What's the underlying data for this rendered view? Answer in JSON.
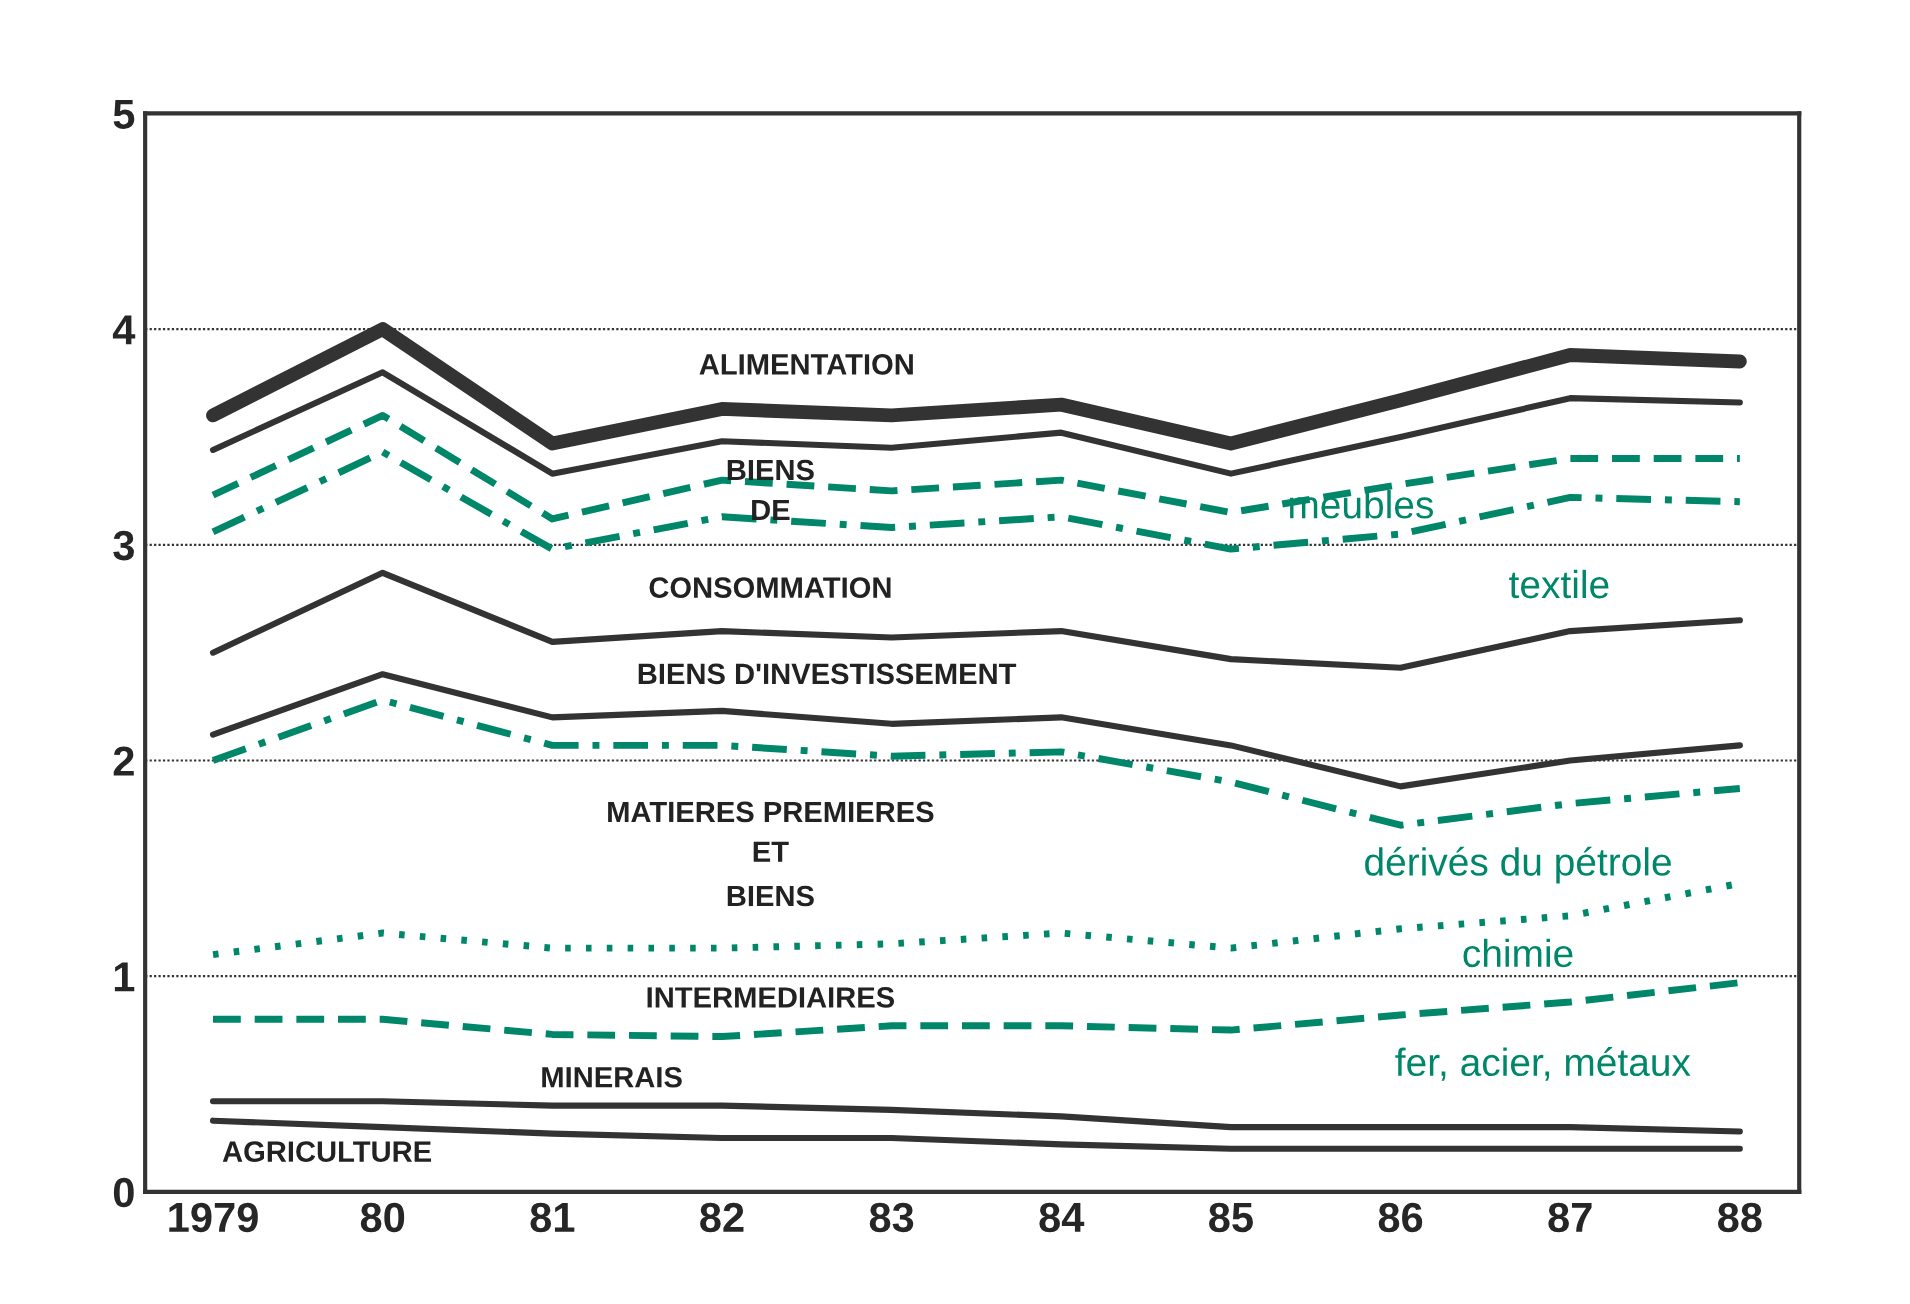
{
  "chart_data": {
    "type": "line",
    "categories": [
      "1979",
      "80",
      "81",
      "82",
      "83",
      "84",
      "85",
      "86",
      "87",
      "88"
    ],
    "ylim": [
      0,
      5
    ],
    "yticks": [
      0,
      1,
      2,
      3,
      4,
      5
    ],
    "grid": "y",
    "legend": false,
    "marker": "none",
    "series": [
      {
        "color": "#333333",
        "line_style": "solid",
        "values": [
          3.6,
          4.0,
          3.47,
          3.63,
          3.6,
          3.65,
          3.47,
          3.67,
          3.88,
          3.85
        ]
      },
      {
        "color": "#333333",
        "line_style": "solid",
        "values": [
          3.44,
          3.8,
          3.33,
          3.48,
          3.45,
          3.52,
          3.33,
          3.5,
          3.68,
          3.66
        ]
      },
      {
        "color": "#00876a",
        "line_style": "dashed",
        "values": [
          3.23,
          3.6,
          3.12,
          3.3,
          3.25,
          3.3,
          3.15,
          3.28,
          3.4,
          3.4
        ]
      },
      {
        "color": "#00876a",
        "line_style": "dashdot",
        "values": [
          3.06,
          3.43,
          2.98,
          3.13,
          3.08,
          3.13,
          2.98,
          3.05,
          3.22,
          3.2
        ]
      },
      {
        "color": "#333333",
        "line_style": "solid",
        "values": [
          2.5,
          2.87,
          2.55,
          2.6,
          2.57,
          2.6,
          2.47,
          2.43,
          2.6,
          2.65
        ]
      },
      {
        "color": "#333333",
        "line_style": "solid",
        "values": [
          2.12,
          2.4,
          2.2,
          2.23,
          2.17,
          2.2,
          2.07,
          1.88,
          2.0,
          2.07
        ]
      },
      {
        "color": "#00876a",
        "line_style": "dashdot",
        "values": [
          2.0,
          2.28,
          2.07,
          2.07,
          2.02,
          2.04,
          1.9,
          1.7,
          1.8,
          1.87
        ]
      },
      {
        "color": "#00876a",
        "line_style": "dotted",
        "values": [
          1.1,
          1.2,
          1.13,
          1.13,
          1.15,
          1.2,
          1.13,
          1.22,
          1.28,
          1.43
        ]
      },
      {
        "color": "#00876a",
        "line_style": "dashed",
        "values": [
          0.8,
          0.8,
          0.73,
          0.72,
          0.77,
          0.77,
          0.75,
          0.82,
          0.88,
          0.97
        ]
      },
      {
        "color": "#333333",
        "line_style": "solid",
        "values": [
          0.42,
          0.42,
          0.4,
          0.4,
          0.38,
          0.35,
          0.3,
          0.3,
          0.3,
          0.28
        ]
      },
      {
        "color": "#333333",
        "line_style": "solid",
        "values": [
          0.33,
          0.3,
          0.27,
          0.25,
          0.25,
          0.22,
          0.2,
          0.2,
          0.2,
          0.2
        ]
      }
    ],
    "annotations": [
      "ALIMENTATION",
      "BIENS",
      "DE",
      "CONSOMMATION",
      "BIENS D'INVESTISSEMENT",
      "MATIERES PREMIERES",
      "ET",
      "BIENS",
      "INTERMEDIAIRES",
      "MINERAIS",
      "AGRICULTURE",
      "meubles",
      "textile",
      "dérivés du pétrole",
      "chimie",
      "fer, acier, métaux"
    ]
  }
}
